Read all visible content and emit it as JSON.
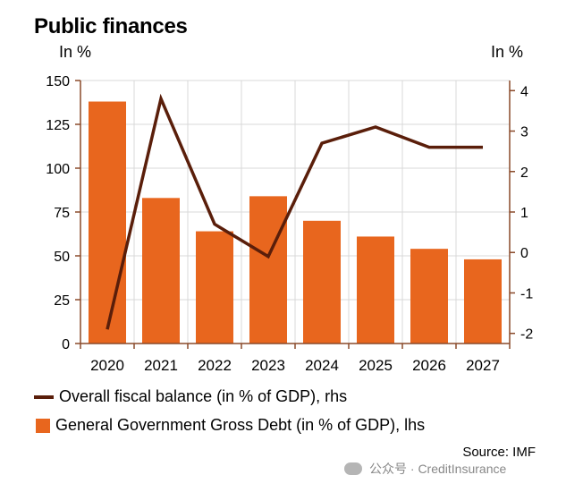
{
  "title": "Public finances",
  "left_unit": "In %",
  "right_unit": "In %",
  "source": "Source: IMF",
  "watermark": "公众号 · CreditInsurance",
  "colors": {
    "bar": "#e8661e",
    "line": "#5a1e0a",
    "axis": "#8a4a2a",
    "grid": "#d8d8d8"
  },
  "chart_data": {
    "type": "bar",
    "categories": [
      "2020",
      "2021",
      "2022",
      "2023",
      "2024",
      "2025",
      "2026",
      "2027"
    ],
    "series": [
      {
        "name": "General Government Gross Debt (in % of GDP), lhs",
        "type": "bar",
        "axis": "left",
        "values": [
          138,
          83,
          64,
          84,
          70,
          61,
          54,
          48
        ]
      },
      {
        "name": "Overall fiscal balance (in % of GDP), rhs",
        "type": "line",
        "axis": "right",
        "values": [
          -1.9,
          3.8,
          0.7,
          -0.1,
          2.7,
          3.1,
          2.6,
          2.6
        ]
      }
    ],
    "left_axis": {
      "ylim": [
        0,
        150
      ],
      "ticks": [
        "0",
        "25",
        "50",
        "75",
        "100",
        "125",
        "150"
      ]
    },
    "right_axis": {
      "ylim": [
        -2.25,
        4.25
      ],
      "ticks": [
        "-2",
        "-1",
        "0",
        "1",
        "2",
        "3",
        "4"
      ]
    },
    "grid": true,
    "legend_position": "bottom-left"
  }
}
